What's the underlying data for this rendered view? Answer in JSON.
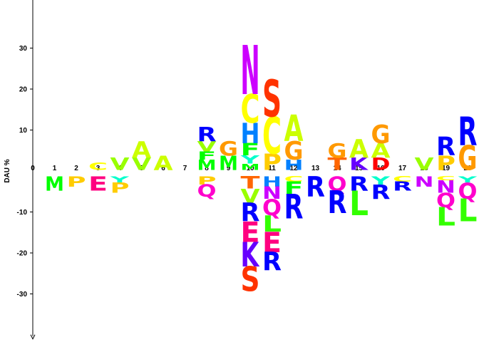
{
  "chart_data": {
    "type": "sequence-logo",
    "ylabel": "DAU %",
    "ylim": [
      -41,
      45
    ],
    "y_ticks": [
      -30,
      -20,
      -10,
      10,
      20,
      30
    ],
    "positions": [
      0,
      1,
      2,
      3,
      4,
      5,
      6,
      7,
      8,
      9,
      10,
      11,
      12,
      13,
      14,
      15,
      16,
      17,
      18,
      19,
      20
    ],
    "colors": {
      "A": "#ccff00",
      "C": "#ffff00",
      "D": "#ff0000",
      "E": "#ff0080",
      "F": "#00ff00",
      "G": "#ff9900",
      "H": "#0080ff",
      "I": "#66ff00",
      "K": "#6600ff",
      "L": "#33ff00",
      "M": "#00ff00",
      "N": "#cc00ff",
      "P": "#ffcc00",
      "Q": "#ff00cc",
      "R": "#0000ff",
      "S": "#ff3300",
      "T": "#ff6600",
      "V": "#99ff00",
      "W": "#00ccff",
      "Y": "#00ffcc"
    },
    "stacks": [
      {
        "position": 1,
        "above": [],
        "below": [
          {
            "letter": "M",
            "value": 3.5
          }
        ]
      },
      {
        "position": 2,
        "above": [],
        "below": [
          {
            "letter": "P",
            "value": 2.5
          }
        ]
      },
      {
        "position": 3,
        "above": [
          {
            "letter": "C",
            "value": 1.8
          }
        ],
        "below": [
          {
            "letter": "E",
            "value": 3.5
          }
        ]
      },
      {
        "position": 4,
        "above": [
          {
            "letter": "V",
            "value": 3
          }
        ],
        "below": [
          {
            "letter": "Y",
            "value": 1.5
          },
          {
            "letter": "P",
            "value": 2.5
          }
        ]
      },
      {
        "position": 5,
        "above": [
          {
            "letter": "V",
            "value": 3
          },
          {
            "letter": "A",
            "value": 4
          }
        ],
        "below": []
      },
      {
        "position": 6,
        "above": [
          {
            "letter": "A",
            "value": 3.5
          }
        ],
        "below": []
      },
      {
        "position": 8,
        "above": [
          {
            "letter": "M",
            "value": 2.5
          },
          {
            "letter": "F",
            "value": 2
          },
          {
            "letter": "V",
            "value": 2.5
          },
          {
            "letter": "R",
            "value": 3.5
          }
        ],
        "below": [
          {
            "letter": "P",
            "value": 2
          },
          {
            "letter": "Q",
            "value": 3
          }
        ]
      },
      {
        "position": 9,
        "above": [
          {
            "letter": "M",
            "value": 3.5
          },
          {
            "letter": "G",
            "value": 3.5
          }
        ],
        "below": []
      },
      {
        "position": 10,
        "above": [
          {
            "letter": "M",
            "value": 1.5
          },
          {
            "letter": "Y",
            "value": 2
          },
          {
            "letter": "F",
            "value": 3
          },
          {
            "letter": "H",
            "value": 5
          },
          {
            "letter": "C",
            "value": 7
          },
          {
            "letter": "N",
            "value": 12
          }
        ],
        "below": [
          {
            "letter": "T",
            "value": 3
          },
          {
            "letter": "V",
            "value": 3.5
          },
          {
            "letter": "R",
            "value": 4.5
          },
          {
            "letter": "E",
            "value": 5
          },
          {
            "letter": "K",
            "value": 6
          },
          {
            "letter": "S",
            "value": 6
          }
        ]
      },
      {
        "position": 11,
        "above": [
          {
            "letter": "P",
            "value": 4
          },
          {
            "letter": "C",
            "value": 9
          },
          {
            "letter": "S",
            "value": 9
          }
        ],
        "below": [
          {
            "letter": "H",
            "value": 2.5
          },
          {
            "letter": "N",
            "value": 3
          },
          {
            "letter": "Q",
            "value": 4
          },
          {
            "letter": "L",
            "value": 4
          },
          {
            "letter": "E",
            "value": 5
          },
          {
            "letter": "R",
            "value": 4.5
          }
        ]
      },
      {
        "position": 12,
        "above": [
          {
            "letter": "H",
            "value": 2.5
          },
          {
            "letter": "G",
            "value": 4.5
          },
          {
            "letter": "A",
            "value": 6.5
          }
        ],
        "below": [
          {
            "letter": "C",
            "value": 1.3
          },
          {
            "letter": "F",
            "value": 3
          },
          {
            "letter": "R",
            "value": 6
          }
        ]
      },
      {
        "position": 13,
        "above": [],
        "below": [
          {
            "letter": "R",
            "value": 5
          }
        ]
      },
      {
        "position": 14,
        "above": [
          {
            "letter": "T",
            "value": 3
          },
          {
            "letter": "G",
            "value": 3.5
          }
        ],
        "below": [
          {
            "letter": "Q",
            "value": 3.5
          },
          {
            "letter": "R",
            "value": 5.5
          }
        ]
      },
      {
        "position": 15,
        "above": [
          {
            "letter": "K",
            "value": 3
          },
          {
            "letter": "A",
            "value": 4.5
          }
        ],
        "below": [
          {
            "letter": "R",
            "value": 3.5
          },
          {
            "letter": "L",
            "value": 6
          }
        ]
      },
      {
        "position": 16,
        "above": [
          {
            "letter": "D",
            "value": 3
          },
          {
            "letter": "A",
            "value": 3.5
          },
          {
            "letter": "G",
            "value": 4.5
          }
        ],
        "below": [
          {
            "letter": "Y",
            "value": 2
          },
          {
            "letter": "R",
            "value": 3.5
          }
        ]
      },
      {
        "position": 17,
        "above": [],
        "below": [
          {
            "letter": "C",
            "value": 1.3
          },
          {
            "letter": "R",
            "value": 2.2
          }
        ]
      },
      {
        "position": 18,
        "above": [
          {
            "letter": "V",
            "value": 3
          }
        ],
        "below": [
          {
            "letter": "N",
            "value": 2.5
          }
        ]
      },
      {
        "position": 19,
        "above": [
          {
            "letter": "P",
            "value": 3.5
          },
          {
            "letter": "R",
            "value": 4.5
          }
        ],
        "below": [
          {
            "letter": "C",
            "value": 1
          },
          {
            "letter": "N",
            "value": 3
          },
          {
            "letter": "Q",
            "value": 3.5
          },
          {
            "letter": "L",
            "value": 4.5
          }
        ]
      },
      {
        "position": 20,
        "above": [
          {
            "letter": "G",
            "value": 6
          },
          {
            "letter": "R",
            "value": 7
          }
        ],
        "below": [
          {
            "letter": "Y",
            "value": 1.5
          },
          {
            "letter": "Q",
            "value": 4
          },
          {
            "letter": "L",
            "value": 5.5
          }
        ]
      }
    ]
  }
}
